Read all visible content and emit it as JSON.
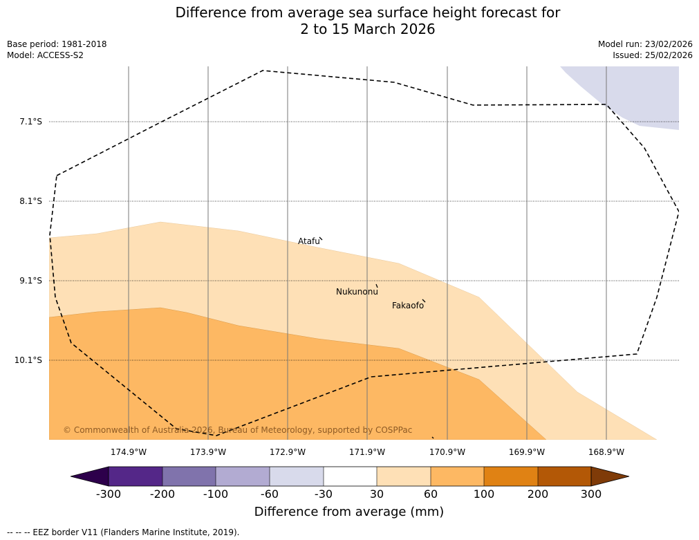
{
  "title": {
    "line1": "Difference from average sea surface height forecast for",
    "line2": "2 to 15 March 2026"
  },
  "meta": {
    "base_period": "Base period: 1981-2018",
    "model": "Model: ACCESS-S2",
    "model_run": "Model run: 23/02/2026",
    "issued": "Issued: 25/02/2026"
  },
  "axes": {
    "lat_labels": [
      "7.1°S",
      "8.1°S",
      "9.1°S",
      "10.1°S"
    ],
    "lon_labels": [
      "174.9°W",
      "173.9°W",
      "172.9°W",
      "171.9°W",
      "170.9°W",
      "169.9°W",
      "168.9°W"
    ]
  },
  "places": {
    "atafu": "Atafu",
    "nukunonu": "Nukunonu",
    "fakaofo": "Fakaofo"
  },
  "copyright": "© Commonwealth of Australia 2026, Bureau of Meteorology, supported by COSPPac",
  "colorbar": {
    "label": "Difference from average (mm)",
    "ticks": [
      "-300",
      "-200",
      "-100",
      "-60",
      "-30",
      "30",
      "60",
      "100",
      "200",
      "300"
    ],
    "colors": {
      "below": "#2d004b",
      "b1": "#542788",
      "b2": "#8073ac",
      "b3": "#b2abd2",
      "b4": "#d8daeb",
      "b5": "#ffffff",
      "b6": "#fee0b6",
      "b7": "#fdb863",
      "b8": "#e08214",
      "b9": "#b35806",
      "above": "#7f3b08"
    }
  },
  "footer": "--  --  -- EEZ border V11 (Flanders Marine Institute, 2019)."
}
